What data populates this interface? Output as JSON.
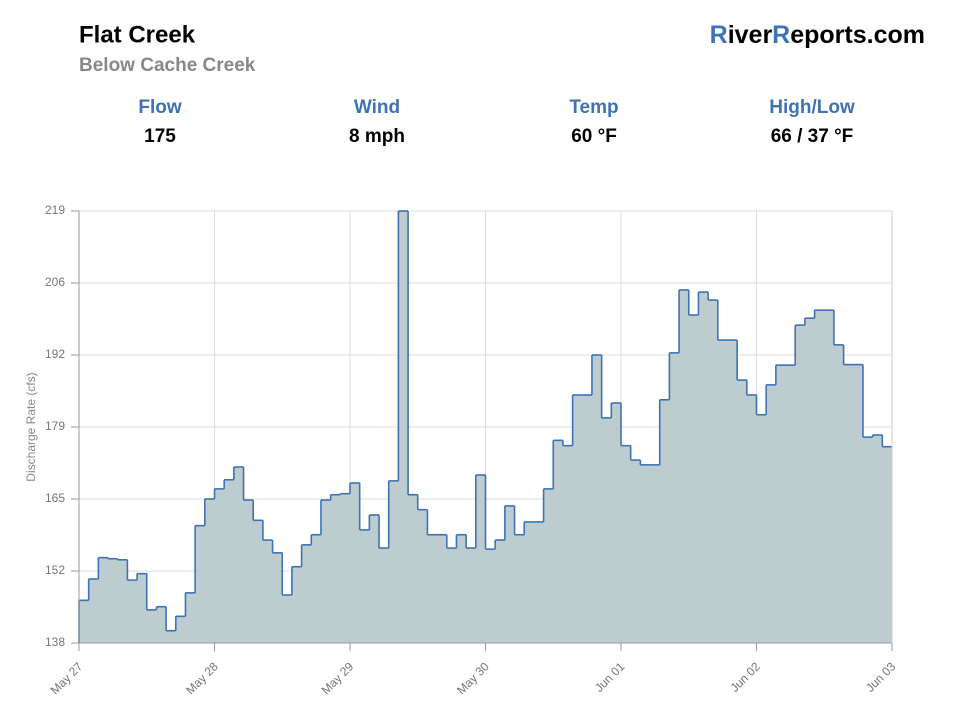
{
  "header": {
    "title": "Flat Creek",
    "subtitle": "Below Cache Creek",
    "brand": [
      "R",
      "iver",
      "R",
      "eports.com"
    ]
  },
  "stats": [
    {
      "label": "Flow",
      "value": "175"
    },
    {
      "label": "Wind",
      "value": "8 mph"
    },
    {
      "label": "Temp",
      "value": "60 °F"
    },
    {
      "label": "High/Low",
      "value": "66 / 37 °F"
    }
  ],
  "chart_data": {
    "type": "step-area",
    "y_label": "Discharge Rate (cfs)",
    "line_color": "#3f72b5",
    "fill_color": "#bccccf",
    "grid": true,
    "categories": [
      "May 27",
      null,
      null,
      null,
      null,
      null,
      null,
      null,
      null,
      null,
      null,
      null,
      null,
      null,
      "May 28",
      null,
      null,
      null,
      null,
      null,
      null,
      null,
      null,
      null,
      null,
      null,
      null,
      null,
      "May 29",
      null,
      null,
      null,
      null,
      null,
      null,
      null,
      null,
      null,
      null,
      null,
      null,
      null,
      "May 30",
      null,
      null,
      null,
      null,
      null,
      null,
      null,
      null,
      null,
      null,
      null,
      null,
      null,
      "Jun 01",
      null,
      null,
      null,
      null,
      null,
      null,
      null,
      null,
      null,
      null,
      null,
      null,
      null,
      "Jun 02",
      null,
      null,
      null,
      null,
      null,
      null,
      null,
      null,
      null,
      null,
      null,
      null,
      null,
      "Jun 03"
    ],
    "values": [
      146,
      150,
      154,
      153.8,
      153.6,
      149.8,
      151,
      144.2,
      144.8,
      140.3,
      143,
      147.4,
      160,
      165,
      166.9,
      168.6,
      171,
      164.8,
      161,
      157.3,
      154.9,
      147,
      152.3,
      156.4,
      158.3,
      164.8,
      165.8,
      166,
      168,
      159.2,
      162,
      155.8,
      168.4,
      219,
      165.8,
      163,
      158.3,
      158.3,
      155.8,
      158.3,
      155.8,
      169.5,
      155.6,
      157.3,
      163.7,
      158.3,
      160.7,
      160.7,
      166.9,
      176,
      175,
      184.5,
      184.5,
      192,
      180.2,
      183,
      175,
      172.3,
      171.4,
      171.4,
      183.6,
      192.4,
      204.2,
      199.5,
      203.8,
      202.3,
      194.8,
      194.8,
      187.3,
      184.5,
      180.8,
      186.4,
      190.1,
      190.1,
      197.6,
      198.9,
      200.4,
      200.4,
      193.9,
      190.2,
      190.2,
      176.6,
      177,
      174.8,
      174.8
    ],
    "ylim": [
      138,
      219
    ],
    "yticks": [
      138,
      {
        "value": 151.5,
        "label": "152"
      },
      165,
      {
        "value": 178.5,
        "label": "179"
      },
      192,
      {
        "value": 205.5,
        "label": "206"
      },
      219
    ]
  }
}
